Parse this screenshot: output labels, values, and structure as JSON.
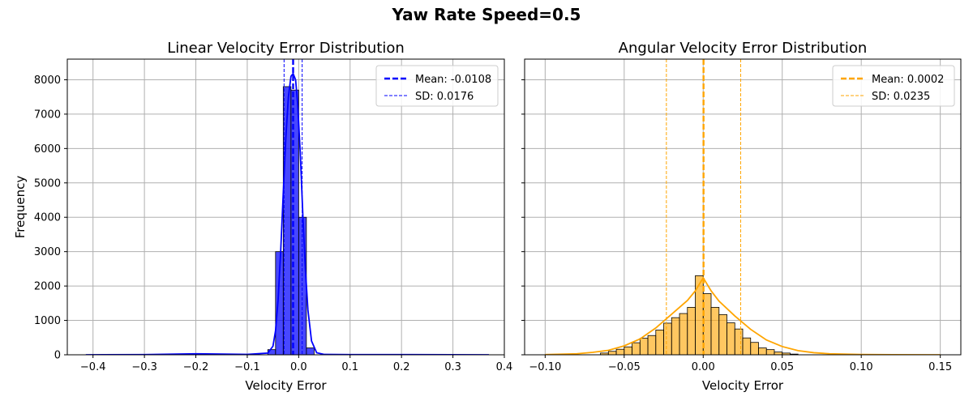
{
  "suptitle": "Yaw Rate Speed=0.5",
  "chart_data": [
    {
      "type": "histogram",
      "title": "Linear Velocity Error Distribution",
      "xlabel": "Velocity Error",
      "ylabel": "Frequency",
      "xlim": [
        -0.45,
        0.4
      ],
      "ylim": [
        0,
        8600
      ],
      "xticks": [
        -0.4,
        -0.3,
        -0.2,
        -0.1,
        0.0,
        0.1,
        0.2,
        0.3,
        0.4
      ],
      "xtick_labels": [
        "−0.4",
        "−0.3",
        "−0.2",
        "−0.1",
        "0.0",
        "0.1",
        "0.2",
        "0.3",
        "0.4"
      ],
      "yticks": [
        0,
        1000,
        2000,
        3000,
        4000,
        5000,
        6000,
        7000,
        8000
      ],
      "ytick_labels": [
        "0",
        "1000",
        "2000",
        "3000",
        "4000",
        "5000",
        "6000",
        "7000",
        "8000"
      ],
      "grid": true,
      "color": "#0000ff",
      "bins": [
        {
          "x0": -0.06,
          "x1": -0.045,
          "count": 150
        },
        {
          "x0": -0.045,
          "x1": -0.03,
          "count": 3000
        },
        {
          "x0": -0.03,
          "x1": -0.015,
          "count": 7800
        },
        {
          "x0": -0.015,
          "x1": 0.0,
          "count": 7700
        },
        {
          "x0": 0.0,
          "x1": 0.015,
          "count": 4000
        },
        {
          "x0": 0.015,
          "x1": 0.03,
          "count": 200
        }
      ],
      "kde": {
        "x": [
          -0.414,
          -0.3,
          -0.2,
          -0.1,
          -0.06,
          -0.05,
          -0.045,
          -0.04,
          -0.035,
          -0.03,
          -0.025,
          -0.02,
          -0.015,
          -0.0108,
          -0.006,
          -0.002,
          0.003,
          0.008,
          0.013,
          0.018,
          0.025,
          0.035,
          0.05,
          0.1,
          0.2,
          0.37
        ],
        "y": [
          0,
          5,
          30,
          10,
          50,
          250,
          700,
          1600,
          3000,
          4700,
          6300,
          7500,
          8100,
          8180,
          8000,
          7300,
          5900,
          4100,
          2500,
          1300,
          400,
          60,
          10,
          5,
          5,
          0
        ]
      },
      "mean": -0.0108,
      "sd": 0.0176,
      "sd_lines": [
        -0.0284,
        0.0068
      ],
      "legend": {
        "placement": "upper right",
        "mean_label": "Mean: -0.0108",
        "sd_label": "SD: 0.0176"
      }
    },
    {
      "type": "histogram",
      "title": "Angular Velocity Error Distribution",
      "xlabel": "Velocity Error",
      "ylabel": "",
      "xlim": [
        -0.113,
        0.163
      ],
      "ylim": [
        0,
        8600
      ],
      "xticks": [
        -0.1,
        -0.05,
        0.0,
        0.05,
        0.1,
        0.15
      ],
      "xtick_labels": [
        "−0.10",
        "−0.05",
        "0.00",
        "0.05",
        "0.10",
        "0.15"
      ],
      "yticks": [
        0,
        1000,
        2000,
        3000,
        4000,
        5000,
        6000,
        7000,
        8000
      ],
      "grid": true,
      "color": "#ffa500",
      "bins": [
        {
          "x0": -0.065,
          "x1": -0.06,
          "count": 50
        },
        {
          "x0": -0.06,
          "x1": -0.055,
          "count": 100
        },
        {
          "x0": -0.055,
          "x1": -0.05,
          "count": 160
        },
        {
          "x0": -0.05,
          "x1": -0.045,
          "count": 230
        },
        {
          "x0": -0.045,
          "x1": -0.04,
          "count": 350
        },
        {
          "x0": -0.04,
          "x1": -0.035,
          "count": 480
        },
        {
          "x0": -0.035,
          "x1": -0.03,
          "count": 560
        },
        {
          "x0": -0.03,
          "x1": -0.025,
          "count": 720
        },
        {
          "x0": -0.025,
          "x1": -0.02,
          "count": 920
        },
        {
          "x0": -0.02,
          "x1": -0.015,
          "count": 1080
        },
        {
          "x0": -0.015,
          "x1": -0.01,
          "count": 1200
        },
        {
          "x0": -0.01,
          "x1": -0.005,
          "count": 1380
        },
        {
          "x0": -0.005,
          "x1": 0.0,
          "count": 2300
        },
        {
          "x0": 0.0,
          "x1": 0.005,
          "count": 1780
        },
        {
          "x0": 0.005,
          "x1": 0.01,
          "count": 1380
        },
        {
          "x0": 0.01,
          "x1": 0.015,
          "count": 1170
        },
        {
          "x0": 0.015,
          "x1": 0.02,
          "count": 930
        },
        {
          "x0": 0.02,
          "x1": 0.025,
          "count": 750
        },
        {
          "x0": 0.025,
          "x1": 0.03,
          "count": 490
        },
        {
          "x0": 0.03,
          "x1": 0.035,
          "count": 360
        },
        {
          "x0": 0.035,
          "x1": 0.04,
          "count": 200
        },
        {
          "x0": 0.04,
          "x1": 0.045,
          "count": 150
        },
        {
          "x0": 0.045,
          "x1": 0.05,
          "count": 80
        },
        {
          "x0": 0.05,
          "x1": 0.055,
          "count": 50
        },
        {
          "x0": 0.055,
          "x1": 0.06,
          "count": 20
        }
      ],
      "kde": {
        "x": [
          -0.1,
          -0.08,
          -0.07,
          -0.06,
          -0.05,
          -0.04,
          -0.03,
          -0.02,
          -0.01,
          -0.005,
          0.0,
          0.005,
          0.01,
          0.02,
          0.03,
          0.04,
          0.05,
          0.06,
          0.07,
          0.08,
          0.1,
          0.12,
          0.15
        ],
        "y": [
          5,
          30,
          70,
          130,
          260,
          460,
          780,
          1180,
          1580,
          1860,
          2240,
          1860,
          1560,
          1130,
          740,
          430,
          240,
          120,
          60,
          30,
          8,
          3,
          0
        ]
      },
      "mean": 0.0002,
      "sd": 0.0235,
      "sd_lines": [
        -0.0233,
        0.0237
      ],
      "legend": {
        "placement": "upper right",
        "mean_label": "Mean: 0.0002",
        "sd_label": "SD: 0.0235"
      }
    }
  ]
}
